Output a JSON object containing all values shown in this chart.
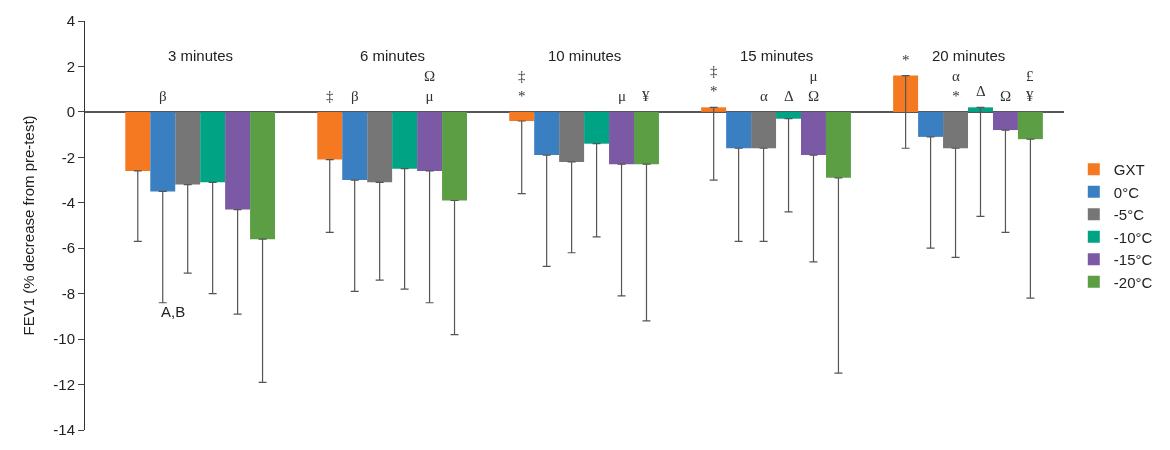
{
  "chart_data": {
    "type": "bar",
    "ylabel": "FEV1 (% decrease from pre-test)",
    "categories": [
      "3 minutes",
      "6 minutes",
      "10 minutes",
      "15 minutes",
      "20 minutes"
    ],
    "ylim": [
      -14,
      4
    ],
    "yticks": [
      -14,
      -12,
      -10,
      -8,
      -6,
      -4,
      -2,
      0,
      2,
      4
    ],
    "legend": "right",
    "series": [
      {
        "name": "GXT",
        "color": "#f47920",
        "values": [
          -2.6,
          -2.1,
          -0.4,
          0.2,
          1.6
        ],
        "errors": [
          [
            -5.7,
            -2.6
          ],
          [
            -5.3,
            -2.1
          ],
          [
            -3.6,
            -0.4
          ],
          [
            -3.0,
            0.2
          ],
          [
            -1.6,
            1.6
          ]
        ],
        "value_labels": [
          null,
          "‡",
          "‡\n*",
          "‡\n*",
          "*"
        ]
      },
      {
        "name": "0°C",
        "color": "#3a7fc1",
        "values": [
          -3.5,
          -3.0,
          -1.9,
          -1.6,
          -1.1
        ],
        "errors": [
          [
            -8.4,
            -3.5
          ],
          [
            -7.9,
            -3.0
          ],
          [
            -6.8,
            -1.9
          ],
          [
            -5.7,
            -1.6
          ],
          [
            -6.0,
            -1.1
          ]
        ],
        "value_labels": [
          "β",
          "β",
          null,
          null,
          null
        ]
      },
      {
        "name": "-5°C",
        "color": "#767676",
        "values": [
          -3.2,
          -3.1,
          -2.2,
          -1.6,
          -1.6
        ],
        "errors": [
          [
            -7.1,
            -3.2
          ],
          [
            -7.4,
            -3.1
          ],
          [
            -6.2,
            -2.2
          ],
          [
            -5.7,
            -1.6
          ],
          [
            -6.4,
            -1.6
          ]
        ],
        "value_labels": [
          null,
          null,
          null,
          "α",
          "α\n*"
        ]
      },
      {
        "name": "-10°C",
        "color": "#00a383",
        "values": [
          -3.1,
          -2.5,
          -1.4,
          -0.3,
          0.2
        ],
        "errors": [
          [
            -8.0,
            -3.1
          ],
          [
            -7.8,
            -2.5
          ],
          [
            -5.5,
            -1.4
          ],
          [
            -4.4,
            -0.3
          ],
          [
            -4.6,
            0.2
          ]
        ],
        "value_labels": [
          null,
          null,
          null,
          "Δ",
          "Δ"
        ]
      },
      {
        "name": "-15°C",
        "color": "#7b59a4",
        "values": [
          -4.3,
          -2.6,
          -2.3,
          -1.9,
          -0.8
        ],
        "errors": [
          [
            -8.9,
            -4.3
          ],
          [
            -8.4,
            -2.6
          ],
          [
            -8.1,
            -2.3
          ],
          [
            -6.6,
            -1.9
          ],
          [
            -5.3,
            -0.8
          ]
        ],
        "value_labels": [
          null,
          "Ω\nμ",
          "μ",
          "μ\nΩ",
          "Ω"
        ]
      },
      {
        "name": "-20°C",
        "color": "#5b9e44",
        "values": [
          -5.6,
          -3.9,
          -2.3,
          -2.9,
          -1.2
        ],
        "errors": [
          [
            -11.9,
            -5.6
          ],
          [
            -9.8,
            -3.9
          ],
          [
            -9.2,
            -2.3
          ],
          [
            -11.5,
            -2.9
          ],
          [
            -8.2,
            -1.2
          ]
        ],
        "value_labels": [
          null,
          null,
          "¥",
          null,
          "£\n¥"
        ]
      }
    ],
    "annotations": [
      "A,B"
    ]
  }
}
